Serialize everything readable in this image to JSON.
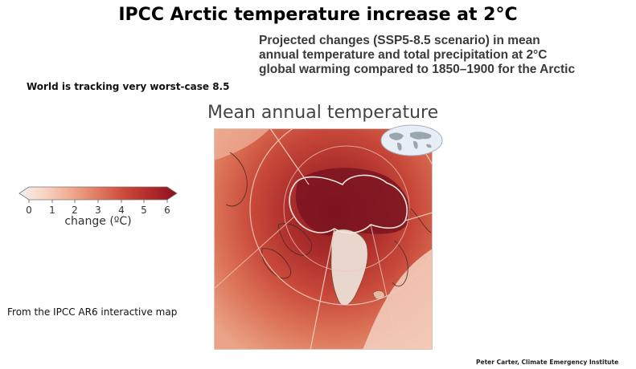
{
  "slide": {
    "title": "IPCC Arctic temperature increase at 2°C",
    "subtitle": "Projected changes (SSP5-8.5 scenario) in mean annual temperature and total precipitation at 2°C global warming compared to 1850–1900 for the Arctic",
    "tracking_note": "World is tracking very worst-case 8.5",
    "source_note": "From the IPCC AR6 interactive map",
    "credit": "Peter Carter, Climate Emergency Institute"
  },
  "map": {
    "title": "Mean annual temperature",
    "legend": {
      "label": "change (ºC)",
      "ticks": [
        "0",
        "1",
        "2",
        "3",
        "4",
        "5",
        "6"
      ],
      "colors": [
        "#f4f1ef",
        "#f7d4c4",
        "#f0a98f",
        "#e07a60",
        "#cc4b3c",
        "#b02a2a",
        "#8a1222"
      ]
    },
    "inset_icon": "world-map-inset-icon"
  }
}
